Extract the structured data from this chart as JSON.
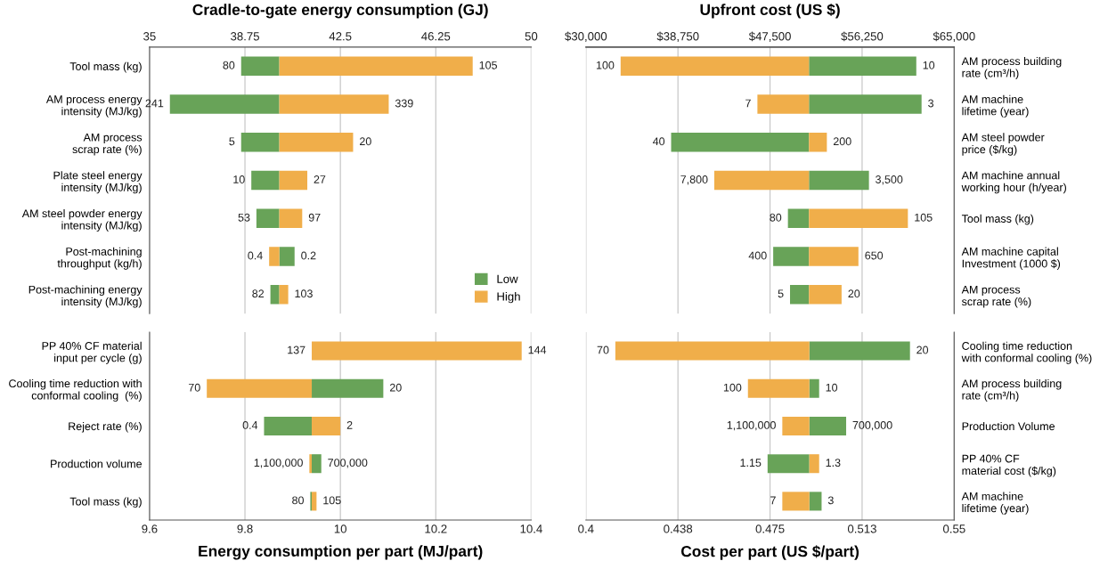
{
  "chart_data": [
    {
      "type": "bar",
      "orientation": "horizontal",
      "title": "Cradle-to-gate energy consumption (GJ)",
      "xlim": [
        35,
        50
      ],
      "xticks": [
        35,
        38.75,
        42.5,
        46.25,
        50
      ],
      "grid": "x",
      "legend": "lower right",
      "categories": [
        "Tool mass (kg)",
        "AM process energy\nintensity (MJ/kg)",
        "AM process\nscrap rate (%)",
        "Plate steel energy\nintensity (MJ/kg)",
        "AM steel powder energy\nintensity (MJ/kg)",
        "Post-machining\nthroughput (kg/h)",
        "Post-machining energy\nintensity (MJ/kg)"
      ],
      "series": [
        {
          "name": "Low",
          "color": "#68a358",
          "base": [
            38.6,
            35.8,
            38.6,
            39.0,
            39.2,
            40.1,
            39.75
          ],
          "values": [
            1.5,
            4.3,
            1.5,
            1.1,
            0.9,
            0.6,
            0.35
          ]
        },
        {
          "name": "High",
          "color": "#f0ae4a",
          "base": [
            40.1,
            40.1,
            40.1,
            40.1,
            40.1,
            39.7,
            40.1
          ],
          "values": [
            7.6,
            4.3,
            2.9,
            1.1,
            0.9,
            0.4,
            0.35
          ]
        }
      ],
      "annotations": [
        {
          "text": "80",
          "x": 38.6,
          "y": "Tool mass (kg)"
        },
        {
          "text": "105",
          "x": 47.7,
          "y": "Tool mass (kg)"
        },
        {
          "text": "241",
          "x": 35.8,
          "y": "AM process energy\nintensity (MJ/kg)"
        },
        {
          "text": "339",
          "x": 44.4,
          "y": "AM process energy\nintensity (MJ/kg)"
        },
        {
          "text": "5",
          "x": 38.6,
          "y": "AM process\nscrap rate (%)"
        },
        {
          "text": "20",
          "x": 43.0,
          "y": "AM process\nscrap rate (%)"
        },
        {
          "text": "10",
          "x": 39.0,
          "y": "Plate steel energy\nintensity (MJ/kg)"
        },
        {
          "text": "27",
          "x": 41.2,
          "y": "Plate steel energy\nintensity (MJ/kg)"
        },
        {
          "text": "53",
          "x": 39.2,
          "y": "AM steel powder energy\nintensity (MJ/kg)"
        },
        {
          "text": "97",
          "x": 41.0,
          "y": "AM steel powder energy\nintensity (MJ/kg)"
        },
        {
          "text": "0.4",
          "x": 39.7,
          "y": "Post-machining\nthroughput (kg/h)"
        },
        {
          "text": "0.2",
          "x": 40.7,
          "y": "Post-machining\nthroughput (kg/h)"
        },
        {
          "text": "82",
          "x": 39.75,
          "y": "Post-machining energy\nintensity (MJ/kg)"
        },
        {
          "text": "103",
          "x": 40.45,
          "y": "Post-machining energy\nintensity (MJ/kg)"
        }
      ]
    },
    {
      "type": "bar",
      "orientation": "horizontal",
      "title": "Upfront cost (US $)",
      "xlim": [
        30000,
        65000
      ],
      "xticks": [
        {
          "value": 30000,
          "label": "$30,000"
        },
        {
          "value": 38750,
          "label": "$38,750"
        },
        {
          "value": 47500,
          "label": "$47,500"
        },
        {
          "value": 56250,
          "label": "$56,250"
        },
        {
          "value": 65000,
          "label": "$65,000"
        }
      ],
      "grid": "x",
      "categories": [
        null,
        null,
        null,
        null,
        null,
        null,
        null
      ],
      "y2_categories": [
        "AM process building\nrate (cm³/h)",
        "AM machine\nlifetime (year)",
        "AM steel powder\nprice ($/kg)",
        "AM machine annual\nworking hour (h/year)",
        "Tool mass (kg)",
        "AM machine capital\nInvestment (1000 $)",
        "AM process\nscrap rate (%)"
      ],
      "series": [
        {
          "color": "#68a358",
          "base": [
            51200,
            51200,
            38100,
            51200,
            49200,
            47800,
            49400
          ],
          "values": [
            10200,
            10700,
            13100,
            5700,
            2000,
            3400,
            1800
          ]
        },
        {
          "color": "#f0ae4a",
          "base": [
            33300,
            46300,
            51200,
            42200,
            51200,
            51200,
            51200
          ],
          "values": [
            17900,
            4900,
            1700,
            9000,
            9400,
            4700,
            3100
          ]
        }
      ],
      "annotations": [
        "10",
        "100",
        "3",
        "7",
        "40",
        "200",
        "3,500",
        "7,800",
        "80",
        "105",
        "400",
        "650",
        "5",
        "20"
      ]
    },
    {
      "type": "bar",
      "orientation": "horizontal",
      "xlabel": "Energy consumption per part (MJ/part)",
      "xlim": [
        9.6,
        10.4
      ],
      "xticks": [
        9.6,
        9.8,
        10,
        10.2,
        10.4
      ],
      "grid": "x",
      "categories": [
        "PP 40% CF material\ninput per cycle (g)",
        "Cooling time reduction with\nconformal cooling  (%)",
        "Reject rate (%)",
        "Production volume",
        "Tool mass (kg)"
      ],
      "series": [
        {
          "color": "#68a358",
          "base": [
            null,
            9.94,
            9.84,
            9.94,
            9.937
          ],
          "values": [
            null,
            0.15,
            0.1,
            0.02,
            0.003
          ]
        },
        {
          "color": "#f0ae4a",
          "base": [
            9.94,
            9.72,
            9.94,
            9.935,
            9.94
          ],
          "values": [
            0.44,
            0.22,
            0.06,
            0.005,
            0.01
          ]
        }
      ],
      "annotations": [
        {
          "text": "137",
          "x": 9.94,
          "y": "PP 40% CF material\ninput per cycle (g)"
        },
        {
          "text": "144",
          "x": 10.38,
          "y": "PP 40% CF material\ninput per cycle (g)"
        },
        {
          "text": "70",
          "x": 9.72,
          "y": "Cooling time reduction with\nconformal cooling  (%)"
        },
        {
          "text": "20",
          "x": 10.09,
          "y": "Cooling time reduction with\nconformal cooling  (%)"
        },
        {
          "text": "0.4",
          "x": 9.84,
          "y": "Reject rate (%)"
        },
        {
          "text": "2",
          "x": 10.0,
          "y": "Reject rate (%)"
        },
        {
          "text": "1,100,000",
          "x": 9.935,
          "y": "Production volume"
        },
        {
          "text": "700,000",
          "x": 9.96,
          "y": "Production volume"
        },
        {
          "text": "80",
          "x": 9.937,
          "y": "Tool mass (kg)"
        },
        {
          "text": "105",
          "x": 9.95,
          "y": "Tool mass (kg)"
        }
      ]
    },
    {
      "type": "bar",
      "orientation": "horizontal",
      "xlabel": "Cost per part (US $/part)",
      "xlim": [
        0.4,
        0.55
      ],
      "xticks": [
        0.4,
        {
          "value": 0.4375,
          "label": "0.438"
        },
        0.475,
        {
          "value": 0.5125,
          "label": "0.513"
        },
        0.55
      ],
      "grid": "x",
      "categories": [
        null,
        null,
        null,
        null,
        null
      ],
      "y2_categories": [
        "Cooling time reduction\nwith conformal cooling (%)",
        "AM process building\nrate (cm³/h)",
        "Production Volume",
        "PP 40% CF\nmaterial cost ($/kg)",
        "AM machine\nlifetime (year)"
      ],
      "series": [
        {
          "color": "#68a358",
          "base": [
            0.491,
            0.491,
            0.491,
            0.474,
            0.491
          ],
          "values": [
            0.041,
            0.004,
            0.015,
            0.017,
            0.005
          ]
        },
        {
          "color": "#f0ae4a",
          "base": [
            0.412,
            0.466,
            0.48,
            0.491,
            0.48
          ],
          "values": [
            0.079,
            0.025,
            0.011,
            0.004,
            0.011
          ]
        }
      ],
      "annotations": [
        "20",
        "70",
        "10",
        "100",
        "700,000",
        "1,100,000",
        "1.15",
        "1.3",
        "3",
        "7"
      ]
    }
  ]
}
